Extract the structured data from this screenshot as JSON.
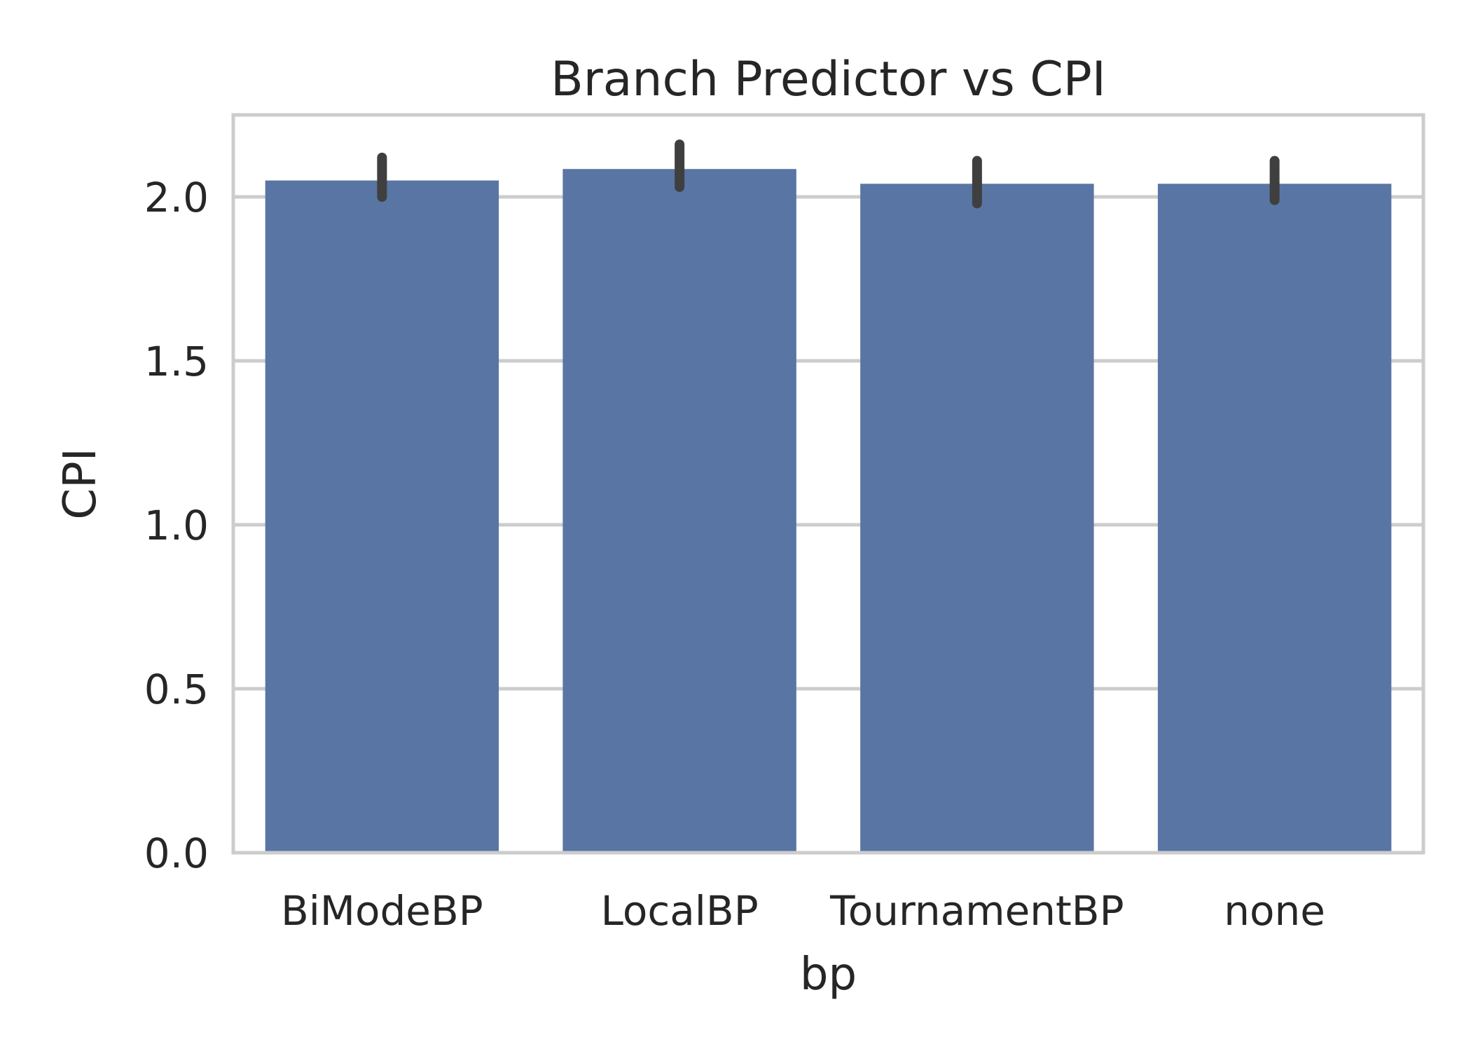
{
  "chart_data": {
    "type": "bar",
    "title": "Branch Predictor vs CPI",
    "xlabel": "bp",
    "ylabel": "CPI",
    "categories": [
      "BiModeBP",
      "LocalBP",
      "TournamentBP",
      "none"
    ],
    "values": [
      2.05,
      2.085,
      2.04,
      2.04
    ],
    "error_bars": [
      {
        "low": 2.0,
        "high": 2.12
      },
      {
        "low": 2.03,
        "high": 2.16
      },
      {
        "low": 1.98,
        "high": 2.11
      },
      {
        "low": 1.99,
        "high": 2.11
      }
    ],
    "ylim": [
      0,
      2.25
    ],
    "yticks": [
      0.0,
      0.5,
      1.0,
      1.5,
      2.0
    ],
    "ytick_labels": [
      "0.0",
      "0.5",
      "1.0",
      "1.5",
      "2.0"
    ],
    "grid": true,
    "legend": "none",
    "colors": {
      "bar": "#5975a4",
      "error_bar": "#3f3f3f",
      "grid": "#cccccc",
      "frame": "#cccccc",
      "text": "#262626"
    }
  }
}
